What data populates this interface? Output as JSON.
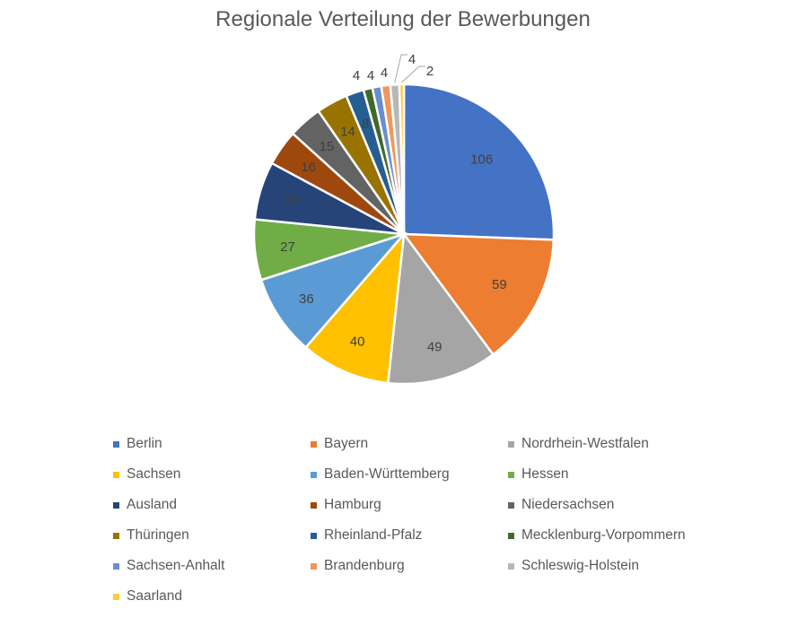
{
  "chart_data": {
    "type": "pie",
    "title": "Regionale Verteilung der Bewerbungen",
    "legend_position": "bottom",
    "slices": [
      {
        "label": "Berlin",
        "value": 106,
        "color": "#4472C4"
      },
      {
        "label": "Bayern",
        "value": 59,
        "color": "#ED7D31"
      },
      {
        "label": "Nordrhein-Westfalen",
        "value": 49,
        "color": "#A5A5A5"
      },
      {
        "label": "Sachsen",
        "value": 40,
        "color": "#FFC000"
      },
      {
        "label": "Baden-Württemberg",
        "value": 36,
        "color": "#5B9BD5"
      },
      {
        "label": "Hessen",
        "value": 27,
        "color": "#70AD47"
      },
      {
        "label": "Ausland",
        "value": 26,
        "color": "#264478"
      },
      {
        "label": "Hamburg",
        "value": 16,
        "color": "#9E480E"
      },
      {
        "label": "Niedersachsen",
        "value": 15,
        "color": "#636363"
      },
      {
        "label": "Thüringen",
        "value": 14,
        "color": "#997300"
      },
      {
        "label": "Rheinland-Pfalz",
        "value": 8,
        "color": "#255E91"
      },
      {
        "label": "Mecklenburg-Vorpommern",
        "value": 4,
        "color": "#43682B"
      },
      {
        "label": "Sachsen-Anhalt",
        "value": 4,
        "color": "#698ED0"
      },
      {
        "label": "Brandenburg",
        "value": 4,
        "color": "#F1975A"
      },
      {
        "label": "Schleswig-Holstein",
        "value": 4,
        "color": "#B7B7B7"
      },
      {
        "label": "Saarland",
        "value": 2,
        "color": "#FFCD33"
      }
    ]
  }
}
